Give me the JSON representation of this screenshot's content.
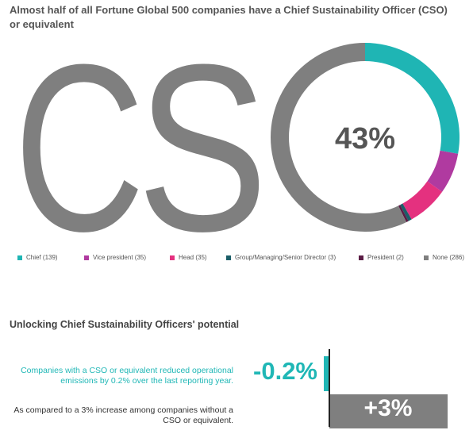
{
  "title": "Almost half of all Fortune Global 500 companies have a Chief Sustainability Officer (CSO) or equivalent",
  "chart_data": [
    {
      "type": "pie",
      "variant": "donut",
      "big_letters": "CSO",
      "center_label": "43%",
      "categories": [
        "Chief (139)",
        "Vice president (35)",
        "Head (35)",
        "Group/Managing/Senior Director (3)",
        "President (2)",
        "None (286)"
      ],
      "values": [
        139,
        35,
        35,
        3,
        2,
        286
      ],
      "colors": [
        "#1fb5b4",
        "#b03aa0",
        "#e4317f",
        "#1b5e68",
        "#5b1d45",
        "#7f7f7f"
      ],
      "legend_placement": "bottom"
    },
    {
      "type": "bar",
      "orientation": "horizontal",
      "title": "Unlocking Chief Sustainability Officers' potential",
      "categories": [
        "Companies with a CSO or equivalent reduced operational emissions by 0.2% over the last reporting year.",
        "As compared to a 3% increase among companies without a CSO or equivalent."
      ],
      "values": [
        -0.2,
        3
      ],
      "value_labels": [
        "-0.2%",
        "+3%"
      ],
      "colors": [
        "#20b7b6",
        "#7f7f7f"
      ]
    }
  ]
}
